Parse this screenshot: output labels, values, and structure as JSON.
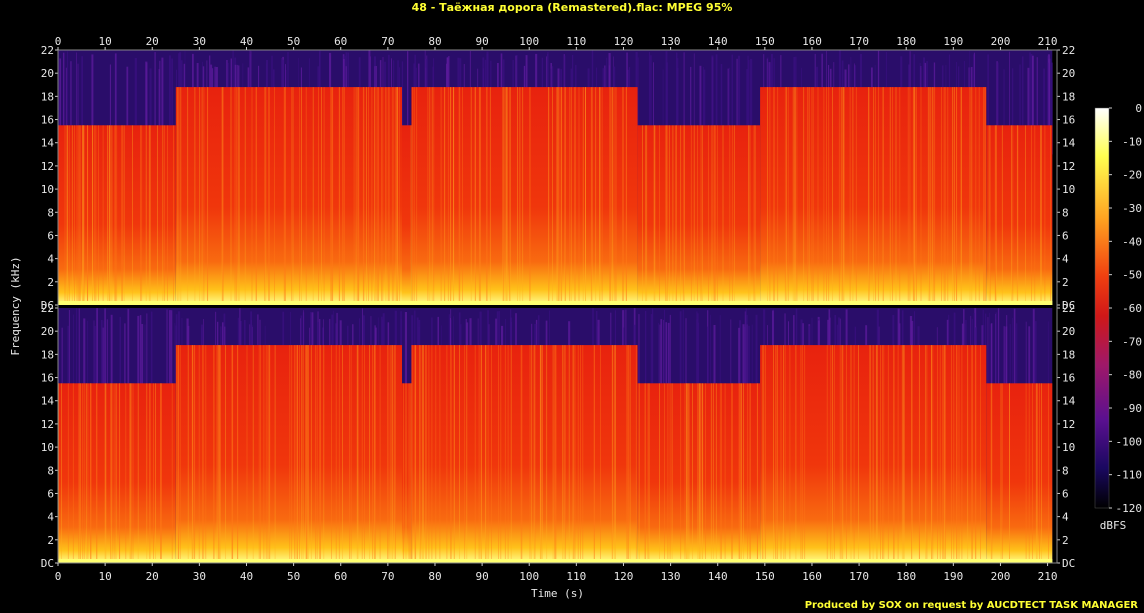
{
  "title": "48 - Таёжная дорога (Remastered).flac: MPEG 95%",
  "footer": "Produced by SOX on request by AUCDTECT TASK MANAGER",
  "chart_data": {
    "type": "heatmap",
    "xlabel": "Time (s)",
    "ylabel": "Frequency (kHz)",
    "xlim": [
      0,
      212
    ],
    "ylim": [
      0,
      22
    ],
    "x_ticks": [
      "0",
      "10",
      "20",
      "30",
      "40",
      "50",
      "60",
      "70",
      "80",
      "90",
      "100",
      "110",
      "120",
      "130",
      "140",
      "150",
      "160",
      "170",
      "180",
      "190",
      "200",
      "210"
    ],
    "y_ticks": [
      "DC",
      "2",
      "4",
      "6",
      "8",
      "10",
      "12",
      "14",
      "16",
      "18",
      "20",
      "22"
    ],
    "channels": 2,
    "colorbar": {
      "label": "dBFS",
      "range": [
        -120,
        0
      ],
      "ticks": [
        "0",
        "-10",
        "-20",
        "-30",
        "-40",
        "-50",
        "-60",
        "-70",
        "-80",
        "-90",
        "-100",
        "-110",
        "-120"
      ]
    },
    "cutoff_segments_khz": [
      {
        "start_s": 0,
        "end_s": 25,
        "cutoff": 15.5
      },
      {
        "start_s": 25,
        "end_s": 73,
        "cutoff": 18.8
      },
      {
        "start_s": 73,
        "end_s": 75,
        "cutoff": 15.5
      },
      {
        "start_s": 75,
        "end_s": 123,
        "cutoff": 18.8
      },
      {
        "start_s": 123,
        "end_s": 149,
        "cutoff": 15.5
      },
      {
        "start_s": 149,
        "end_s": 197,
        "cutoff": 18.8
      },
      {
        "start_s": 197,
        "end_s": 211,
        "cutoff": 15.5
      }
    ]
  }
}
